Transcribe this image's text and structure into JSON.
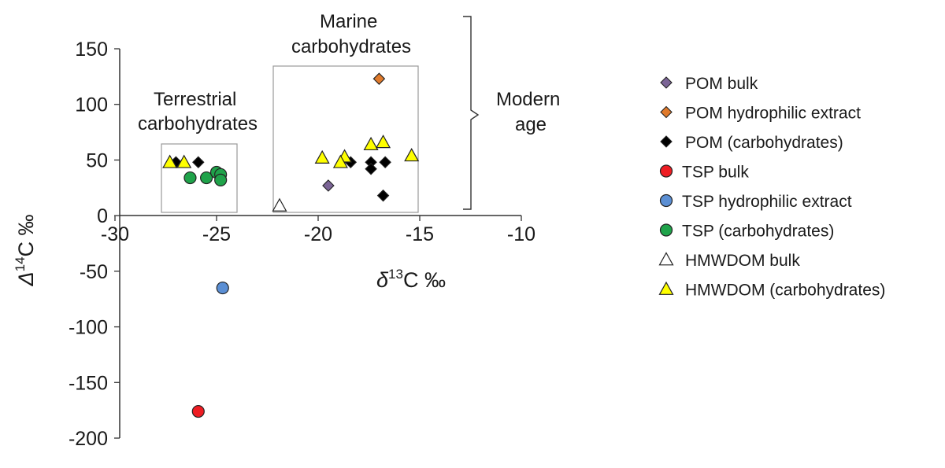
{
  "chart_data": {
    "type": "scatter",
    "xlabel": {
      "prefix": "δ",
      "sup": "13",
      "suffix": "C ‰"
    },
    "ylabel": {
      "prefix": "Δ",
      "sup": "14",
      "suffix": "C ‰"
    },
    "xlim": [
      -30,
      -10
    ],
    "ylim": [
      -200,
      150
    ],
    "x_ticks": [
      -30,
      -25,
      -20,
      -15,
      -10
    ],
    "y_ticks": [
      150,
      100,
      50,
      0,
      -50,
      -100,
      -150,
      -200
    ],
    "grid": false,
    "legend_position": "right",
    "series": [
      {
        "name": "POM bulk",
        "marker": "diamond",
        "color": "#7b6496",
        "points": [
          [
            -19.5,
            27
          ]
        ]
      },
      {
        "name": "POM hydrophilic extract",
        "marker": "diamond",
        "color": "#e07a2b",
        "points": [
          [
            -17.0,
            123
          ]
        ]
      },
      {
        "name": "POM (carbohydrates)",
        "marker": "diamond",
        "color": "#000000",
        "points": [
          [
            -27.0,
            48
          ],
          [
            -25.9,
            48
          ],
          [
            -18.4,
            48
          ],
          [
            -17.4,
            48
          ],
          [
            -17.4,
            42
          ],
          [
            -16.7,
            48
          ],
          [
            -16.8,
            18
          ]
        ]
      },
      {
        "name": "TSP bulk",
        "marker": "circle",
        "color": "#ee1d23",
        "points": [
          [
            -25.9,
            -176
          ]
        ]
      },
      {
        "name": "TSP hydrophilic extract",
        "marker": "circle",
        "color": "#5b8fd4",
        "points": [
          [
            -24.7,
            -65
          ]
        ]
      },
      {
        "name": "TSP (carbohydrates)",
        "marker": "circle",
        "color": "#1fa34a",
        "points": [
          [
            -26.3,
            34
          ],
          [
            -25.5,
            34
          ],
          [
            -25.0,
            39
          ],
          [
            -24.8,
            37
          ],
          [
            -24.8,
            32
          ]
        ]
      },
      {
        "name": "HMWDOM bulk",
        "marker": "triangle",
        "color": "#ffffff",
        "points": [
          [
            -21.9,
            9
          ]
        ]
      },
      {
        "name": "HMWDOM (carbohydrates)",
        "marker": "triangle",
        "color": "#ffff00",
        "points": [
          [
            -27.3,
            48
          ],
          [
            -26.6,
            48
          ],
          [
            -19.8,
            52
          ],
          [
            -18.7,
            53
          ],
          [
            -18.9,
            48
          ],
          [
            -17.4,
            64
          ],
          [
            -16.8,
            66
          ],
          [
            -15.4,
            54
          ]
        ]
      }
    ],
    "annotations": {
      "terrestrial": [
        "Terrestrial",
        "carbohydrates"
      ],
      "marine": [
        "Marine",
        "carbohydrates"
      ],
      "modern": [
        "Modern",
        "age"
      ]
    }
  }
}
